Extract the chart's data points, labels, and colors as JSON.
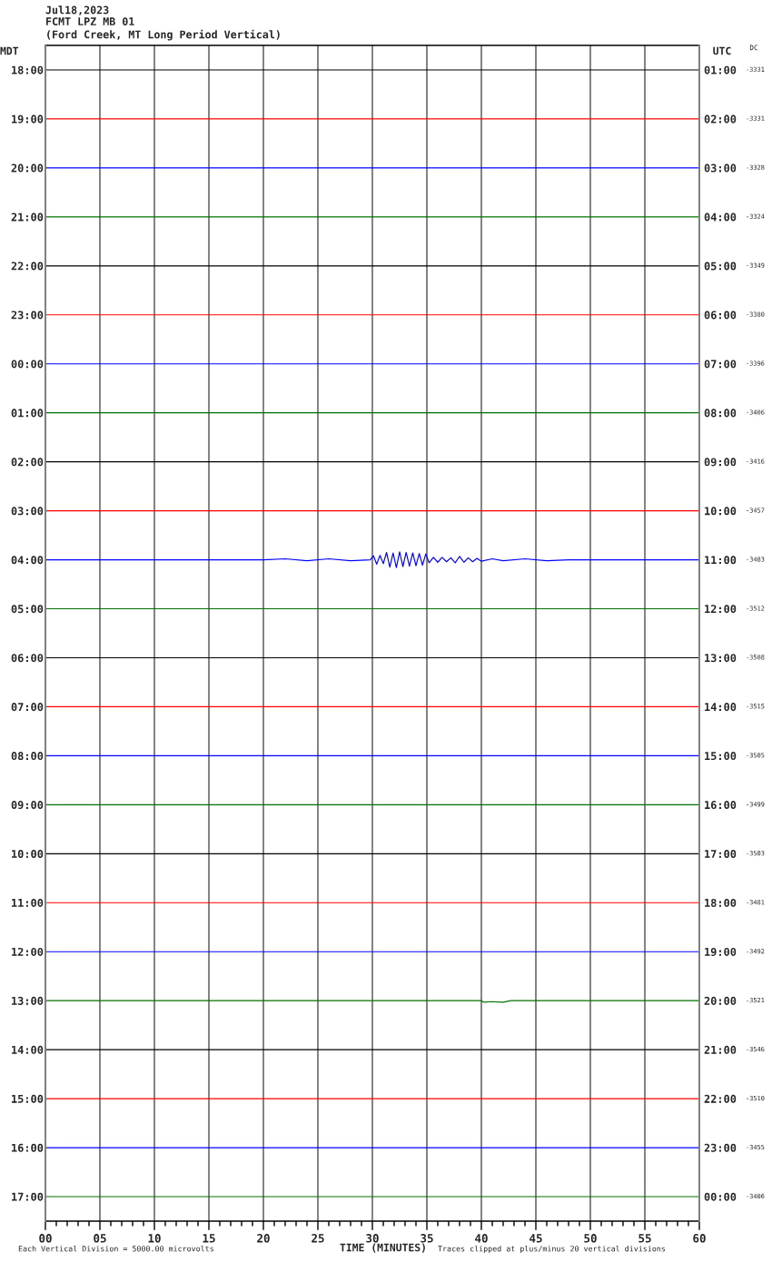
{
  "chart_data": {
    "type": "line",
    "title": "Jul18,2023",
    "subtitle": "FCMT LPZ MB 01\n(Ford Creek, MT Long Period Vertical)",
    "xlabel": "TIME (MINUTES)",
    "ylabel": "MDT",
    "y2label": "UTC",
    "annotations": [
      "DC",
      "-3331",
      "-3331",
      "-3328",
      "-3324",
      "-3349",
      "-3380",
      "-3396",
      "-3406",
      "-3416",
      "-3457",
      "-3483",
      "-3512",
      "-3508",
      "-3515",
      "-3505",
      "-3499",
      "-3503",
      "-3481",
      "-3492",
      "-3521",
      "-3546",
      "-3510",
      "-3455",
      "-3406",
      "Each Vertical Division = 5000.00 microvolts",
      "Traces clipped at plus/minus 20 vertical divisions"
    ],
    "x": [
      0,
      60
    ],
    "xlim": [
      0,
      60
    ],
    "xticks": [
      {
        "value": 0,
        "label": "00"
      },
      {
        "value": 1,
        "label": null
      },
      {
        "value": 2,
        "label": null
      },
      {
        "value": 3,
        "label": null
      },
      {
        "value": 4,
        "label": null
      },
      {
        "value": 5,
        "label": "05"
      },
      {
        "value": 6,
        "label": null
      },
      {
        "value": 7,
        "label": null
      },
      {
        "value": 8,
        "label": null
      },
      {
        "value": 9,
        "label": null
      },
      10,
      {
        "value": 11,
        "label": null
      },
      {
        "value": 12,
        "label": null
      },
      {
        "value": 13,
        "label": null
      },
      {
        "value": 14,
        "label": null
      },
      15,
      {
        "value": 16,
        "label": null
      },
      {
        "value": 17,
        "label": null
      },
      {
        "value": 18,
        "label": null
      },
      {
        "value": 19,
        "label": null
      },
      20,
      {
        "value": 21,
        "label": null
      },
      {
        "value": 22,
        "label": null
      },
      {
        "value": 23,
        "label": null
      },
      {
        "value": 24,
        "label": null
      },
      25,
      {
        "value": 26,
        "label": null
      },
      {
        "value": 27,
        "label": null
      },
      {
        "value": 28,
        "label": null
      },
      {
        "value": 29,
        "label": null
      },
      30,
      {
        "value": 31,
        "label": null
      },
      {
        "value": 32,
        "label": null
      },
      {
        "value": 33,
        "label": null
      },
      {
        "value": 34,
        "label": null
      },
      35,
      {
        "value": 36,
        "label": null
      },
      {
        "value": 37,
        "label": null
      },
      {
        "value": 38,
        "label": null
      },
      {
        "value": 39,
        "label": null
      },
      40,
      {
        "value": 41,
        "label": null
      },
      {
        "value": 42,
        "label": null
      },
      {
        "value": 43,
        "label": null
      },
      {
        "value": 44,
        "label": null
      },
      45,
      {
        "value": 46,
        "label": null
      },
      {
        "value": 47,
        "label": null
      },
      {
        "value": 48,
        "label": null
      },
      {
        "value": 49,
        "label": null
      },
      50,
      {
        "value": 51,
        "label": null
      },
      {
        "value": 52,
        "label": null
      },
      {
        "value": 53,
        "label": null
      },
      {
        "value": 54,
        "label": null
      },
      55,
      {
        "value": 56,
        "label": null
      },
      {
        "value": 57,
        "label": null
      },
      {
        "value": 58,
        "label": null
      },
      {
        "value": 59,
        "label": null
      },
      60
    ],
    "ylim": [
      41.5,
      17.5
    ],
    "yticks": [
      {
        "value": 18,
        "label": "18:00"
      },
      {
        "value": 19,
        "label": "19:00"
      },
      {
        "value": 20,
        "label": "20:00"
      },
      {
        "value": 21,
        "label": "21:00"
      },
      {
        "value": 22,
        "label": "22:00"
      },
      {
        "value": 23,
        "label": "23:00"
      }
    ],
    "y3lim": [
      17.5,
      -6.5
    ],
    "y3ticks": [
      {
        "value": 0,
        "label": "00:00"
      },
      {
        "value": 1,
        "label": "01:00"
      },
      {
        "value": 2,
        "label": "02:00"
      },
      {
        "value": 3,
        "label": "03:00"
      },
      {
        "value": 4,
        "label": "04:00"
      },
      {
        "value": 5,
        "label": "05:00"
      },
      {
        "value": 6,
        "label": "06:00"
      },
      {
        "value": 7,
        "label": "07:00"
      },
      {
        "value": 8,
        "label": "08:00"
      },
      {
        "value": 9,
        "label": "09:00"
      },
      {
        "value": 10,
        "label": "10:00"
      },
      {
        "value": 11,
        "label": "11:00"
      },
      {
        "value": 12,
        "label": "12:00"
      },
      {
        "value": 13,
        "label": "13:00"
      },
      {
        "value": 14,
        "label": "14:00"
      },
      {
        "value": 15,
        "label": "15:00"
      },
      {
        "value": 16,
        "label": "16:00"
      },
      {
        "value": 17,
        "label": "17:00"
      }
    ],
    "y2lim": [
      24.5,
      0.5
    ],
    "y2ticks": [
      {
        "value": 1,
        "label": "01:00"
      },
      {
        "value": 2,
        "label": "02:00"
      },
      {
        "value": 3,
        "label": "03:00"
      },
      {
        "value": 4,
        "label": "04:00"
      },
      {
        "value": 5,
        "label": "05:00"
      },
      {
        "value": 6,
        "label": "06:00"
      },
      {
        "value": 7,
        "label": "07:00"
      },
      {
        "value": 8,
        "label": "08:00"
      },
      {
        "value": 9,
        "label": "09:00"
      },
      {
        "value": 10,
        "label": "10:00"
      },
      {
        "value": 11,
        "label": "11:00"
      },
      {
        "value": 12,
        "label": "12:00"
      },
      {
        "value": 13,
        "label": "13:00"
      },
      {
        "value": 14,
        "label": "14:00"
      },
      {
        "value": 15,
        "label": "15:00"
      },
      {
        "value": 16,
        "label": "16:00"
      },
      {
        "value": 17,
        "label": "17:00"
      },
      {
        "value": 18,
        "label": "18:00"
      },
      {
        "value": 19,
        "label": "19:00"
      },
      {
        "value": 20,
        "label": "20:00"
      },
      {
        "value": 21,
        "label": "21:00"
      },
      {
        "value": 22,
        "label": "22:00"
      },
      {
        "value": 23,
        "label": "23:00"
      },
      {
        "value": 24,
        "label": "00:00"
      }
    ],
    "grid": "x",
    "series": [
      {
        "color": "#000000",
        "values": [
          18,
          18
        ]
      },
      {
        "color": "#ff0000",
        "values": [
          19,
          19
        ]
      },
      {
        "color": "#0000ff",
        "values": [
          20,
          20
        ]
      },
      {
        "color": "#007000",
        "values": [
          21,
          21
        ]
      },
      {
        "color": "#000000",
        "values": [
          22,
          22
        ]
      },
      {
        "color": "#ff0000",
        "values": [
          23,
          23
        ]
      },
      {
        "color": "#0000ff",
        "values": [
          24,
          24
        ]
      },
      {
        "color": "#007000",
        "values": [
          25,
          25
        ]
      },
      {
        "color": "#000000",
        "values": [
          26,
          26
        ]
      },
      {
        "color": "#ff0000",
        "values": [
          27,
          27
        ]
      },
      {
        "color": "#0000ff",
        "x": [
          0,
          19,
          20,
          22,
          24,
          26,
          28,
          29.8,
          30.1,
          30.4,
          30.7,
          31,
          31.3,
          31.6,
          31.9,
          32.2,
          32.5,
          32.8,
          33.1,
          33.4,
          33.7,
          34.0,
          34.3,
          34.6,
          34.9,
          35.2,
          35.6,
          36,
          36.4,
          36.8,
          37.2,
          37.6,
          38,
          38.4,
          38.8,
          39.2,
          39.6,
          40,
          41,
          42,
          44,
          46,
          48,
          60
        ],
        "values": [
          28,
          28,
          28,
          27.98,
          28.02,
          27.98,
          28.02,
          28,
          27.92,
          28.09,
          27.91,
          28.08,
          27.85,
          28.15,
          27.86,
          28.16,
          27.84,
          28.14,
          27.85,
          28.13,
          27.86,
          28.12,
          27.87,
          28.11,
          27.88,
          28.06,
          27.95,
          28.05,
          27.95,
          28.04,
          27.96,
          28.06,
          27.93,
          28.05,
          27.96,
          28.04,
          27.97,
          28.03,
          27.98,
          28.02,
          27.98,
          28.02,
          28,
          28
        ]
      },
      {
        "color": "#007000",
        "values": [
          29,
          29
        ]
      },
      {
        "color": "#000000",
        "values": [
          30,
          30
        ]
      },
      {
        "color": "#ff0000",
        "values": [
          31,
          31
        ]
      },
      {
        "color": "#0000ff",
        "values": [
          32,
          32
        ]
      },
      {
        "color": "#007000",
        "values": [
          33,
          33
        ]
      },
      {
        "color": "#000000",
        "values": [
          34,
          34
        ]
      },
      {
        "color": "#ff0000",
        "values": [
          35,
          35
        ]
      },
      {
        "color": "#0000ff",
        "values": [
          36,
          36
        ]
      },
      {
        "color": "#007000",
        "x": [
          0,
          40,
          40.2,
          41,
          42,
          42.7,
          60
        ],
        "values": [
          37,
          37,
          37.03,
          37.02,
          37.03,
          37,
          37
        ]
      },
      {
        "color": "#000000",
        "values": [
          38,
          38
        ]
      },
      {
        "color": "#ff0000",
        "values": [
          39,
          39
        ]
      },
      {
        "color": "#0000ff",
        "values": [
          40,
          40
        ]
      },
      {
        "color": "#007000",
        "values": [
          41,
          41
        ]
      }
    ]
  }
}
